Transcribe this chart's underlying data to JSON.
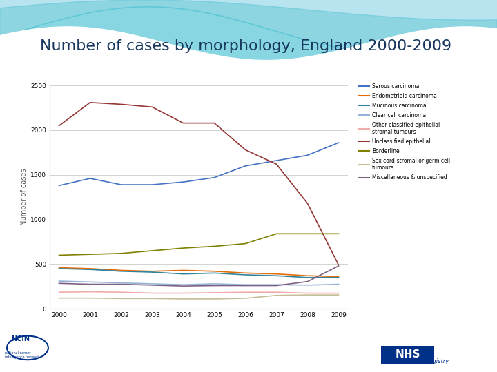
{
  "title": "Number of cases by morphology, England 2000-2009",
  "ylabel": "Number of cases",
  "years": [
    2000,
    2001,
    2002,
    2003,
    2004,
    2005,
    2006,
    2007,
    2008,
    2009
  ],
  "ylim": [
    0,
    2500
  ],
  "yticks": [
    0,
    500,
    1000,
    1500,
    2000,
    2500
  ],
  "series": [
    {
      "label": "Serous carcinoma",
      "color": "#4472C4",
      "values": [
        1380,
        1460,
        1390,
        1390,
        1420,
        1470,
        1600,
        1660,
        1720,
        1860
      ]
    },
    {
      "label": "Endometrioid carcinoma",
      "color": "#E36C09",
      "values": [
        460,
        450,
        430,
        420,
        430,
        420,
        400,
        390,
        370,
        360
      ]
    },
    {
      "label": "Mucinous carcinoma",
      "color": "#31849B",
      "values": [
        450,
        440,
        420,
        410,
        390,
        400,
        380,
        370,
        350,
        350
      ]
    },
    {
      "label": "Clear cell carcinoma",
      "color": "#95B3D7",
      "values": [
        310,
        300,
        290,
        280,
        270,
        280,
        270,
        270,
        265,
        275
      ]
    },
    {
      "label": "Other classified epithelial-\nstromal tumours",
      "color": "#F2ABAB",
      "values": [
        185,
        190,
        185,
        175,
        175,
        180,
        185,
        185,
        175,
        175
      ]
    },
    {
      "label": "Unclassified epithelial",
      "color": "#953735",
      "values": [
        2050,
        2310,
        2290,
        2260,
        2080,
        2080,
        1780,
        1620,
        1180,
        490
      ]
    },
    {
      "label": "Borderline",
      "color": "#7F7F00",
      "values": [
        600,
        610,
        620,
        650,
        680,
        700,
        730,
        840,
        840,
        840
      ]
    },
    {
      "label": "Sex cord-stromal or germ cell\ntumours",
      "color": "#C4BD97",
      "values": [
        120,
        120,
        115,
        115,
        110,
        110,
        118,
        150,
        155,
        155
      ]
    },
    {
      "label": "Miscellaneous & unspecified",
      "color": "#7F6084",
      "values": [
        285,
        275,
        275,
        265,
        255,
        260,
        260,
        260,
        305,
        480
      ]
    }
  ],
  "background_color": "#FFFFFF",
  "title_color": "#17375E",
  "title_fontsize": 16,
  "wave_color1": "#5DCCCC",
  "wave_color2": "#A8DDE9",
  "wave_color3": "#C8EEF5"
}
